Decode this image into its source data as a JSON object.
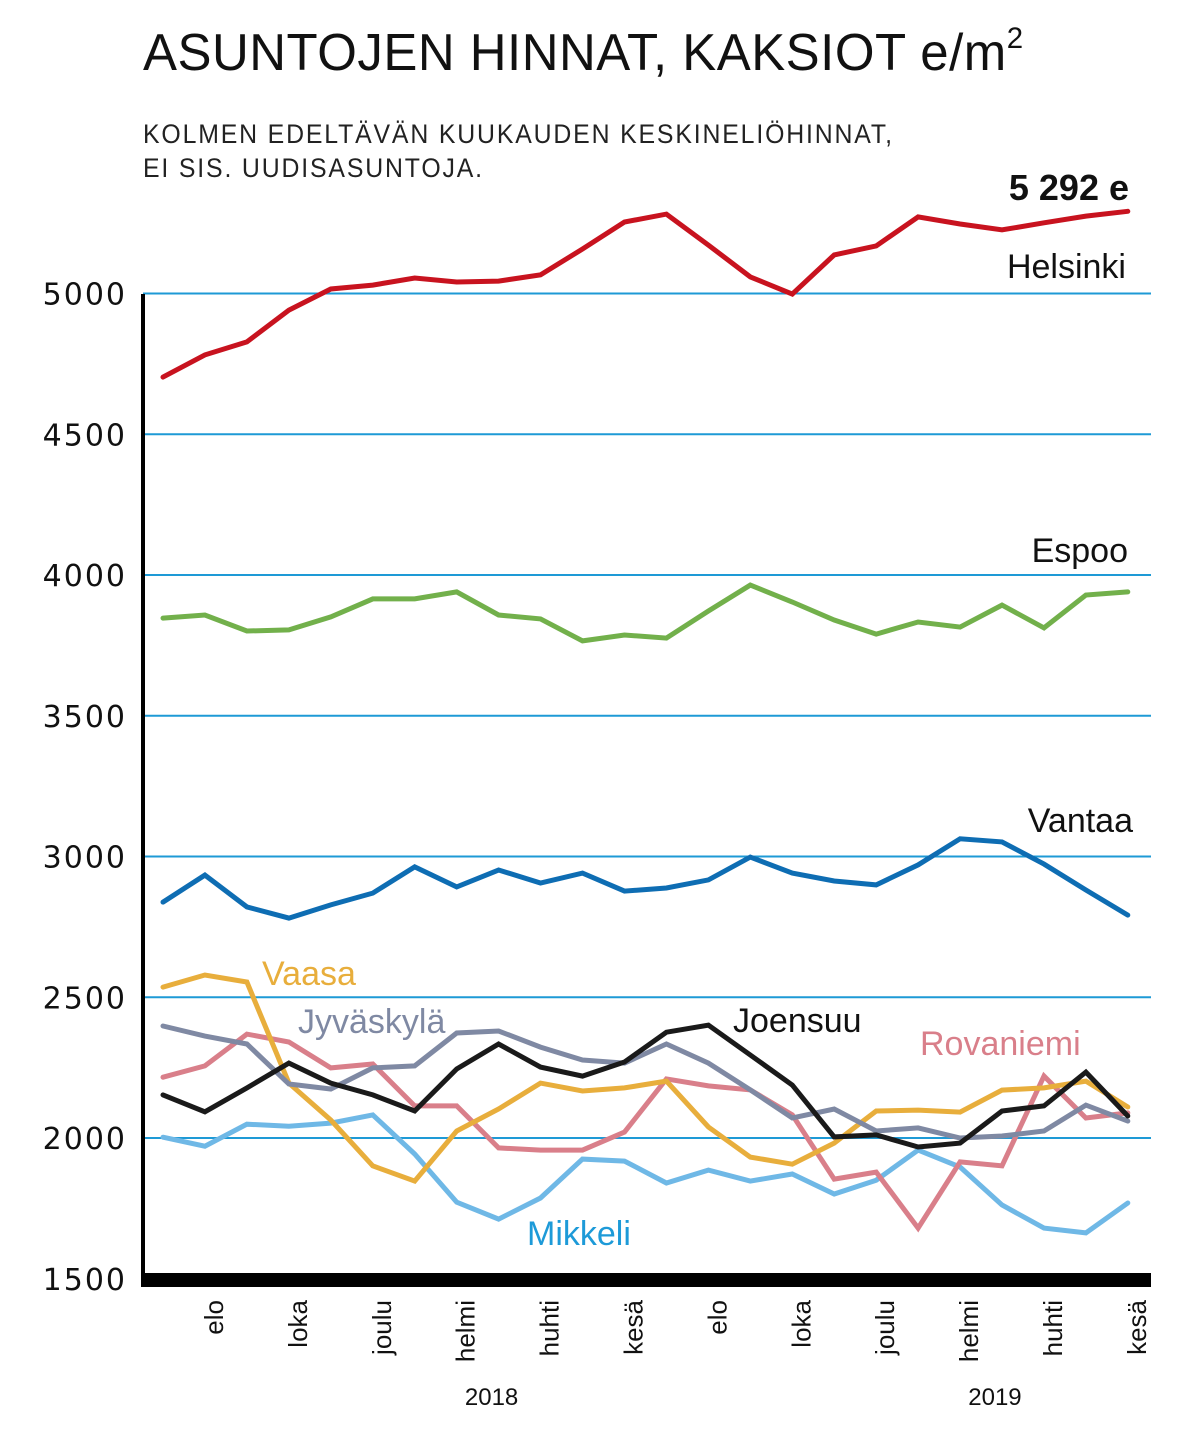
{
  "header": {
    "title": "ASUNTOJEN HINNAT, KAKSIOT e/m",
    "title_superscript": "2",
    "subtitle_line1": "KOLMEN EDELTÄVÄN KUUKAUDEN KESKINELIÖHINNAT,",
    "subtitle_line2": "EI SIS. UUDISASUNTOJA."
  },
  "chart_data": {
    "type": "line",
    "title": "ASUNTOJEN HINNAT, KAKSIOT e/m²",
    "subtitle": "KOLMEN EDELTÄVÄN KUUKAUDEN KESKINELIÖHINNAT, EI SIS. UUDISASUNTOJA.",
    "xlabel": "",
    "ylabel": "",
    "ylim": [
      1500,
      5300
    ],
    "yticks": [
      1500,
      2000,
      2500,
      3000,
      3500,
      4000,
      4500,
      5000
    ],
    "grid": true,
    "grid_color": "#1e9ad6",
    "n_points": 24,
    "xtick_labels": [
      {
        "index": 1,
        "label": "elo"
      },
      {
        "index": 3,
        "label": "loka"
      },
      {
        "index": 5,
        "label": "joulu"
      },
      {
        "index": 7,
        "label": "helmi"
      },
      {
        "index": 9,
        "label": "huhti"
      },
      {
        "index": 11,
        "label": "kesä"
      },
      {
        "index": 13,
        "label": "elo"
      },
      {
        "index": 15,
        "label": "loka"
      },
      {
        "index": 17,
        "label": "joulu"
      },
      {
        "index": 19,
        "label": "helmi"
      },
      {
        "index": 21,
        "label": "huhti"
      },
      {
        "index": 23,
        "label": "kesä"
      }
    ],
    "year_labels": [
      {
        "index": 8.5,
        "label": "2018"
      },
      {
        "index": 20.5,
        "label": "2019"
      }
    ],
    "end_annotation": {
      "series": "Helsinki",
      "text": "5 292 e"
    },
    "series": [
      {
        "name": "Helsinki",
        "color": "#c8131f",
        "label_color": "#111111",
        "values": [
          4703,
          4782,
          4828,
          4941,
          5016,
          5030,
          5055,
          5041,
          5044,
          5066,
          5158,
          5254,
          5282,
          5172,
          5059,
          4998,
          5137,
          5169,
          5272,
          5247,
          5226,
          5251,
          5275,
          5292
        ]
      },
      {
        "name": "Espoo",
        "color": "#72b04b",
        "label_color": "#111111",
        "values": [
          3847,
          3858,
          3801,
          3805,
          3851,
          3915,
          3915,
          3940,
          3858,
          3844,
          3766,
          3787,
          3776,
          3872,
          3964,
          3904,
          3840,
          3790,
          3833,
          3815,
          3893,
          3812,
          3929,
          3940
        ]
      },
      {
        "name": "Vantaa",
        "color": "#0e6db3",
        "label_color": "#111111",
        "values": [
          2838,
          2934,
          2821,
          2781,
          2828,
          2870,
          2963,
          2892,
          2952,
          2906,
          2941,
          2877,
          2888,
          2917,
          2998,
          2941,
          2913,
          2899,
          2970,
          3063,
          3052,
          2973,
          2881,
          2792
        ]
      },
      {
        "name": "Vaasa",
        "color": "#e8ae3c",
        "label_color": "#e8ae3c",
        "values": [
          2536,
          2579,
          2554,
          2195,
          2064,
          1901,
          1847,
          2025,
          2103,
          2195,
          2167,
          2178,
          2202,
          2039,
          1932,
          1907,
          1982,
          2096,
          2099,
          2092,
          2170,
          2178,
          2202,
          2110
        ]
      },
      {
        "name": "Jyväskylä",
        "color": "#7f89a3",
        "label_color": "#7f89a3",
        "values": [
          2398,
          2362,
          2334,
          2192,
          2174,
          2249,
          2256,
          2373,
          2380,
          2323,
          2277,
          2266,
          2334,
          2266,
          2171,
          2071,
          2103,
          2025,
          2036,
          2000,
          2007,
          2025,
          2117,
          2060
        ]
      },
      {
        "name": "Joensuu",
        "color": "#1a1a1a",
        "label_color": "#111111",
        "values": [
          2153,
          2093,
          2178,
          2266,
          2195,
          2153,
          2096,
          2245,
          2334,
          2252,
          2220,
          2270,
          2376,
          2401,
          2295,
          2188,
          2004,
          2011,
          1968,
          1982,
          2096,
          2114,
          2234,
          2078
        ]
      },
      {
        "name": "Rovaniemi",
        "color": "#d97f8a",
        "label_color": "#d97f8a",
        "values": [
          2216,
          2256,
          2369,
          2341,
          2249,
          2263,
          2114,
          2114,
          1965,
          1957,
          1957,
          2021,
          2210,
          2185,
          2171,
          2082,
          1854,
          1879,
          1680,
          1915,
          1901,
          2220,
          2071,
          2089
        ]
      },
      {
        "name": "Mikkeli",
        "color": "#6fb8e6",
        "label_color": "#1d9ad8",
        "values": [
          2003,
          1971,
          2049,
          2042,
          2053,
          2082,
          1943,
          1772,
          1712,
          1787,
          1925,
          1918,
          1840,
          1886,
          1847,
          1872,
          1801,
          1850,
          1957,
          1897,
          1762,
          1680,
          1663,
          1769
        ]
      }
    ]
  }
}
